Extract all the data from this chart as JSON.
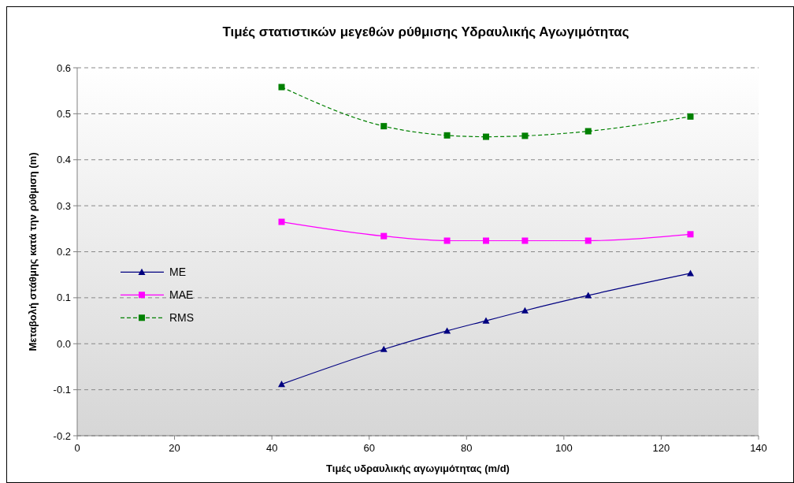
{
  "chart_data": {
    "type": "line",
    "title": "Τιμές στατιστικών μεγεθών ρύθμισης Υδραυλικής Αγωγιμότητας",
    "xlabel": "Τιμές υδραυλικής αγωγιμότητας (m/d)",
    "ylabel": "Μεταβολή στάθμης κατά την ρύθμιση (m)",
    "x": [
      42,
      63,
      76,
      84,
      92,
      105,
      126
    ],
    "series": [
      {
        "name": "ME",
        "color": "#000080",
        "marker": "triangle",
        "line_style": "solid",
        "values": [
          -0.088,
          -0.012,
          0.028,
          0.05,
          0.072,
          0.105,
          0.153
        ]
      },
      {
        "name": "MAE",
        "color": "#ff00ff",
        "marker": "square",
        "line_style": "solid",
        "values": [
          0.265,
          0.234,
          0.224,
          0.224,
          0.224,
          0.224,
          0.238
        ]
      },
      {
        "name": "RMS",
        "color": "#008000",
        "marker": "square",
        "line_style": "dashed",
        "values": [
          0.558,
          0.473,
          0.453,
          0.45,
          0.452,
          0.462,
          0.494
        ]
      }
    ],
    "xlim": [
      0,
      140
    ],
    "xticks": [
      0,
      20,
      40,
      60,
      80,
      100,
      120,
      140
    ],
    "ylim": [
      -0.2,
      0.6
    ],
    "yticks": [
      -0.2,
      -0.1,
      {
        "value": 0,
        "label": "0.0"
      },
      0.1,
      0.2,
      0.3,
      0.4,
      0.5,
      0.6
    ],
    "grid": "y",
    "legend": "left"
  }
}
